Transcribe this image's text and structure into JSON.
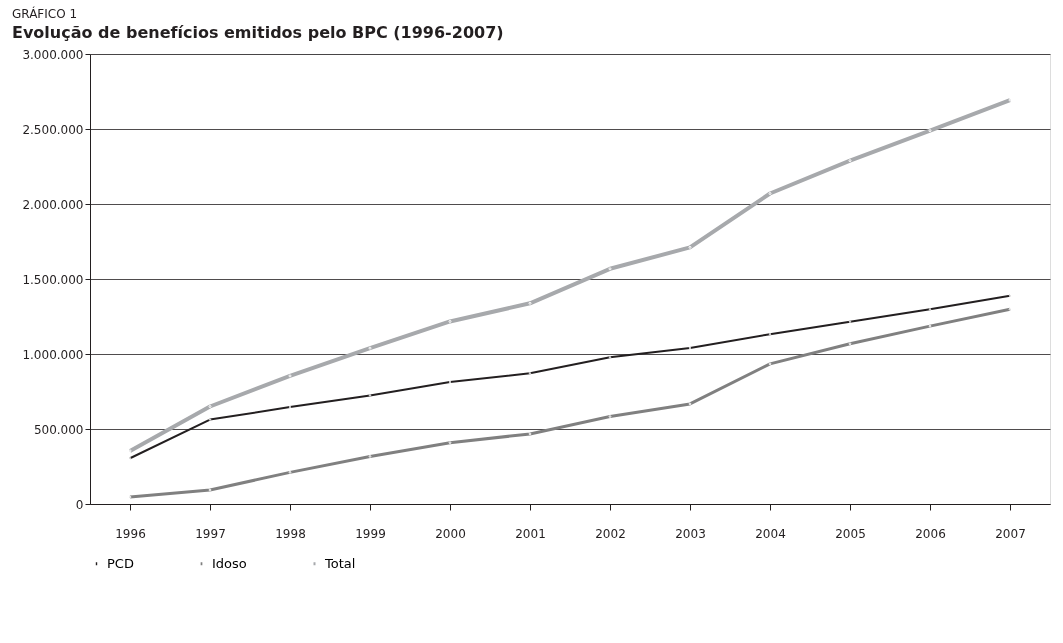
{
  "chart_data": {
    "type": "line",
    "title": "Evolução de benefícios emitidos pelo BPC (1996-2007)",
    "annotations": [
      "GRÁFICO 1"
    ],
    "categories": [
      "1996",
      "1997",
      "1998",
      "1999",
      "2000",
      "2001",
      "2002",
      "2003",
      "2004",
      "2005",
      "2006",
      "2007"
    ],
    "series": [
      {
        "name": "PCD",
        "color": "#231f20",
        "values": [
          305000,
          563000,
          646000,
          724000,
          813000,
          871000,
          978000,
          1040000,
          1132000,
          1215000,
          1298000,
          1388000
        ]
      },
      {
        "name": "Idoso",
        "color": "#808080",
        "values": [
          46000,
          93000,
          211000,
          317000,
          409000,
          467000,
          583000,
          667000,
          934000,
          1068000,
          1186000,
          1298000
        ]
      },
      {
        "name": "Total",
        "color": "#a7a9ac",
        "values": [
          354000,
          650000,
          854000,
          1039000,
          1217000,
          1338000,
          1568000,
          1711000,
          2070000,
          2289000,
          2489000,
          2693000
        ]
      }
    ],
    "ylim": [
      0,
      3000000
    ],
    "yticks": [
      0,
      {
        "value": 500000,
        "label": "500.000"
      },
      {
        "value": 1000000,
        "label": "1.000.000"
      },
      {
        "value": 1500000,
        "label": "1.500.000"
      },
      {
        "value": 2000000,
        "label": "2.000.000"
      },
      {
        "value": 2500000,
        "label": "2.500.000"
      },
      {
        "value": 3000000,
        "label": "3.000.000"
      }
    ],
    "grid": "y",
    "legend": "bottom",
    "marker": "circle",
    "line_style": "solid"
  }
}
